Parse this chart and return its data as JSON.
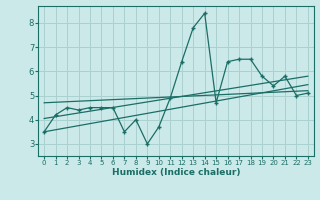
{
  "xlabel": "Humidex (Indice chaleur)",
  "ylabel": "",
  "xlim": [
    -0.5,
    23.5
  ],
  "ylim": [
    2.5,
    8.7
  ],
  "yticks": [
    3,
    4,
    5,
    6,
    7,
    8
  ],
  "xticks": [
    0,
    1,
    2,
    3,
    4,
    5,
    6,
    7,
    8,
    9,
    10,
    11,
    12,
    13,
    14,
    15,
    16,
    17,
    18,
    19,
    20,
    21,
    22,
    23
  ],
  "bg_color": "#cce9e9",
  "line_color": "#1a6e66",
  "grid_color": "#aad0d0",
  "main_line_x": [
    0,
    1,
    2,
    3,
    4,
    5,
    6,
    7,
    8,
    9,
    10,
    11,
    12,
    13,
    14,
    15,
    16,
    17,
    18,
    19,
    20,
    21,
    22,
    23
  ],
  "main_line_y": [
    3.5,
    4.2,
    4.5,
    4.4,
    4.5,
    4.5,
    4.5,
    3.5,
    4.0,
    3.0,
    3.7,
    4.9,
    6.4,
    7.8,
    8.4,
    4.7,
    6.4,
    6.5,
    6.5,
    5.8,
    5.4,
    5.8,
    5.0,
    5.1
  ],
  "trend_line1_x": [
    0,
    23
  ],
  "trend_line1_y": [
    4.05,
    5.8
  ],
  "trend_line2_x": [
    0,
    23
  ],
  "trend_line2_y": [
    3.5,
    5.45
  ],
  "trend_line3_x": [
    0,
    23
  ],
  "trend_line3_y": [
    4.7,
    5.2
  ]
}
